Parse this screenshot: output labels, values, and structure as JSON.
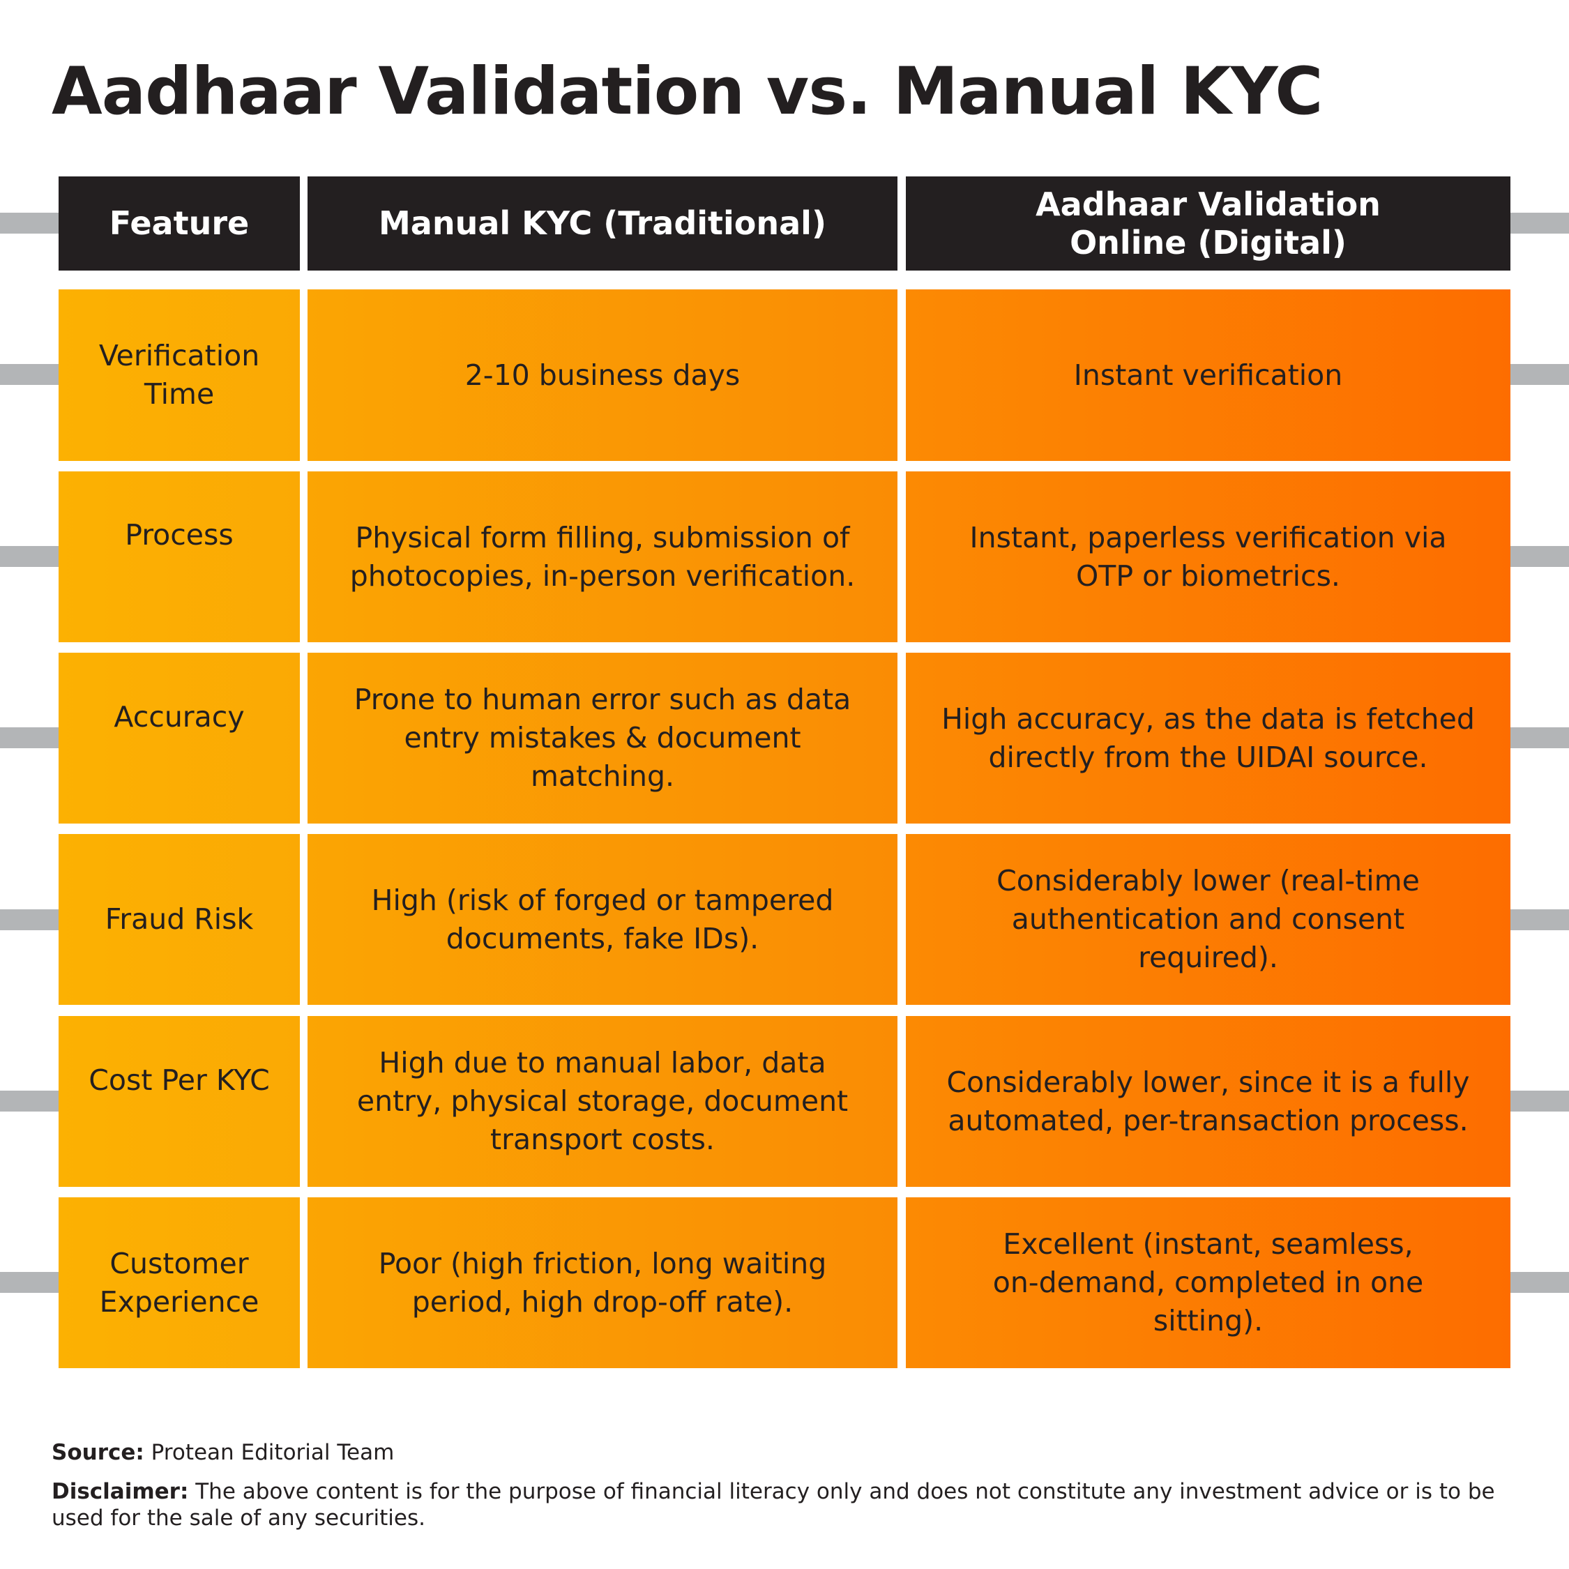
{
  "title": "Aadhaar Validation vs. Manual KYC",
  "table": {
    "headers": [
      "Feature",
      "Manual KYC (Traditional)",
      "Aadhaar Validation Online (Digital)"
    ],
    "rows": [
      [
        "Verification Time",
        "2-10 business days",
        "Instant verification"
      ],
      [
        "Process",
        "Physical form filling, submission of photocopies, in-person verification.",
        "Instant, paperless verification via OTP or biometrics."
      ],
      [
        "Accuracy",
        "Prone to human error such as data entry mistakes & document matching.",
        "High accuracy, as the data is fetched directly from the UIDAI source."
      ],
      [
        "Fraud Risk",
        "High (risk of forged or tampered documents, fake IDs).",
        "Considerably lower (real-time authentication and consent required)."
      ],
      [
        "Cost Per KYC",
        "High due to manual labor, data entry, physical storage, document transport costs.",
        "Considerably lower, since it is a fully automated, per-transaction process."
      ],
      [
        "Customer Experience",
        "Poor (high friction, long waiting period, high drop-off rate).",
        "Excellent (instant, seamless, on-demand, completed in one sitting)."
      ]
    ]
  },
  "source": {
    "label": "Source:",
    "text": "Protean Editorial Team"
  },
  "disclaimer": {
    "label": "Disclaimer:",
    "text": "The above content is for the purpose of financial literacy only and does not constitute any investment advice or is to be used for the sale of any securities."
  },
  "colors": {
    "header_bg": "#231f20",
    "orange_light": "#fcb102",
    "orange_dark": "#fd6d00",
    "connector_gray": "#b3b5b7"
  }
}
